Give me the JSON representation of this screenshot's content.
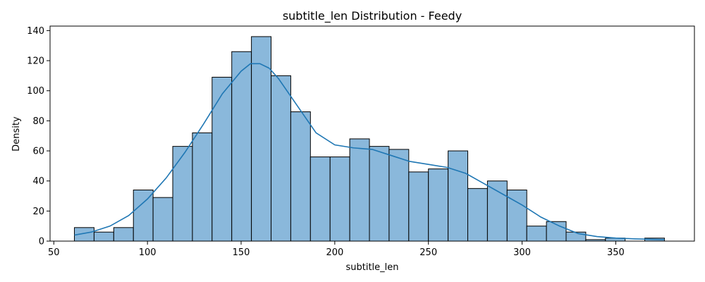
{
  "chart_data": {
    "type": "bar",
    "title": "subtitle_len Distribution - Feedy",
    "xlabel": "subtitle_len",
    "ylabel": "Density",
    "xlim": [
      48,
      392
    ],
    "ylim": [
      0,
      143
    ],
    "xticks": [
      50,
      100,
      150,
      200,
      250,
      300,
      350
    ],
    "yticks": [
      0,
      20,
      40,
      60,
      80,
      100,
      120,
      140
    ],
    "bar_color": "#8ab8db",
    "bar_edge_color": "#000000",
    "kde_color": "#1f77b4",
    "bins": [
      {
        "x0": 61,
        "x1": 71.5,
        "count": 9
      },
      {
        "x0": 71.5,
        "x1": 82,
        "count": 6
      },
      {
        "x0": 82,
        "x1": 92.5,
        "count": 9
      },
      {
        "x0": 92.5,
        "x1": 103,
        "count": 34
      },
      {
        "x0": 103,
        "x1": 113.5,
        "count": 29
      },
      {
        "x0": 113.5,
        "x1": 124,
        "count": 63
      },
      {
        "x0": 124,
        "x1": 134.5,
        "count": 72
      },
      {
        "x0": 134.5,
        "x1": 145,
        "count": 109
      },
      {
        "x0": 145,
        "x1": 155.5,
        "count": 126
      },
      {
        "x0": 155.5,
        "x1": 166,
        "count": 136
      },
      {
        "x0": 166,
        "x1": 176.5,
        "count": 110
      },
      {
        "x0": 176.5,
        "x1": 187,
        "count": 86
      },
      {
        "x0": 187,
        "x1": 197.5,
        "count": 56
      },
      {
        "x0": 197.5,
        "x1": 208,
        "count": 56
      },
      {
        "x0": 208,
        "x1": 218.5,
        "count": 68
      },
      {
        "x0": 218.5,
        "x1": 229,
        "count": 63
      },
      {
        "x0": 229,
        "x1": 239.5,
        "count": 61
      },
      {
        "x0": 239.5,
        "x1": 250,
        "count": 46
      },
      {
        "x0": 250,
        "x1": 260.5,
        "count": 48
      },
      {
        "x0": 260.5,
        "x1": 271,
        "count": 60
      },
      {
        "x0": 271,
        "x1": 281.5,
        "count": 35
      },
      {
        "x0": 281.5,
        "x1": 292,
        "count": 40
      },
      {
        "x0": 292,
        "x1": 302.5,
        "count": 34
      },
      {
        "x0": 302.5,
        "x1": 313,
        "count": 10
      },
      {
        "x0": 313,
        "x1": 323.5,
        "count": 13
      },
      {
        "x0": 323.5,
        "x1": 334,
        "count": 6
      },
      {
        "x0": 334,
        "x1": 344.5,
        "count": 1
      },
      {
        "x0": 344.5,
        "x1": 355,
        "count": 2
      },
      {
        "x0": 355,
        "x1": 365.5,
        "count": 0
      },
      {
        "x0": 365.5,
        "x1": 376,
        "count": 2
      }
    ],
    "kde": {
      "x": [
        61,
        70,
        80,
        90,
        100,
        110,
        120,
        130,
        140,
        150,
        155,
        160,
        165,
        170,
        180,
        190,
        200,
        210,
        220,
        230,
        240,
        250,
        260,
        270,
        280,
        290,
        300,
        310,
        320,
        330,
        340,
        350,
        360,
        370,
        376
      ],
      "y": [
        4,
        6,
        10,
        17,
        28,
        42,
        59,
        78,
        98,
        113,
        118,
        118,
        115,
        108,
        90,
        72,
        64,
        62,
        61,
        57,
        53,
        51,
        49,
        45,
        38,
        31,
        24,
        16,
        10,
        5,
        3,
        2,
        1.5,
        1.2,
        1
      ]
    }
  }
}
